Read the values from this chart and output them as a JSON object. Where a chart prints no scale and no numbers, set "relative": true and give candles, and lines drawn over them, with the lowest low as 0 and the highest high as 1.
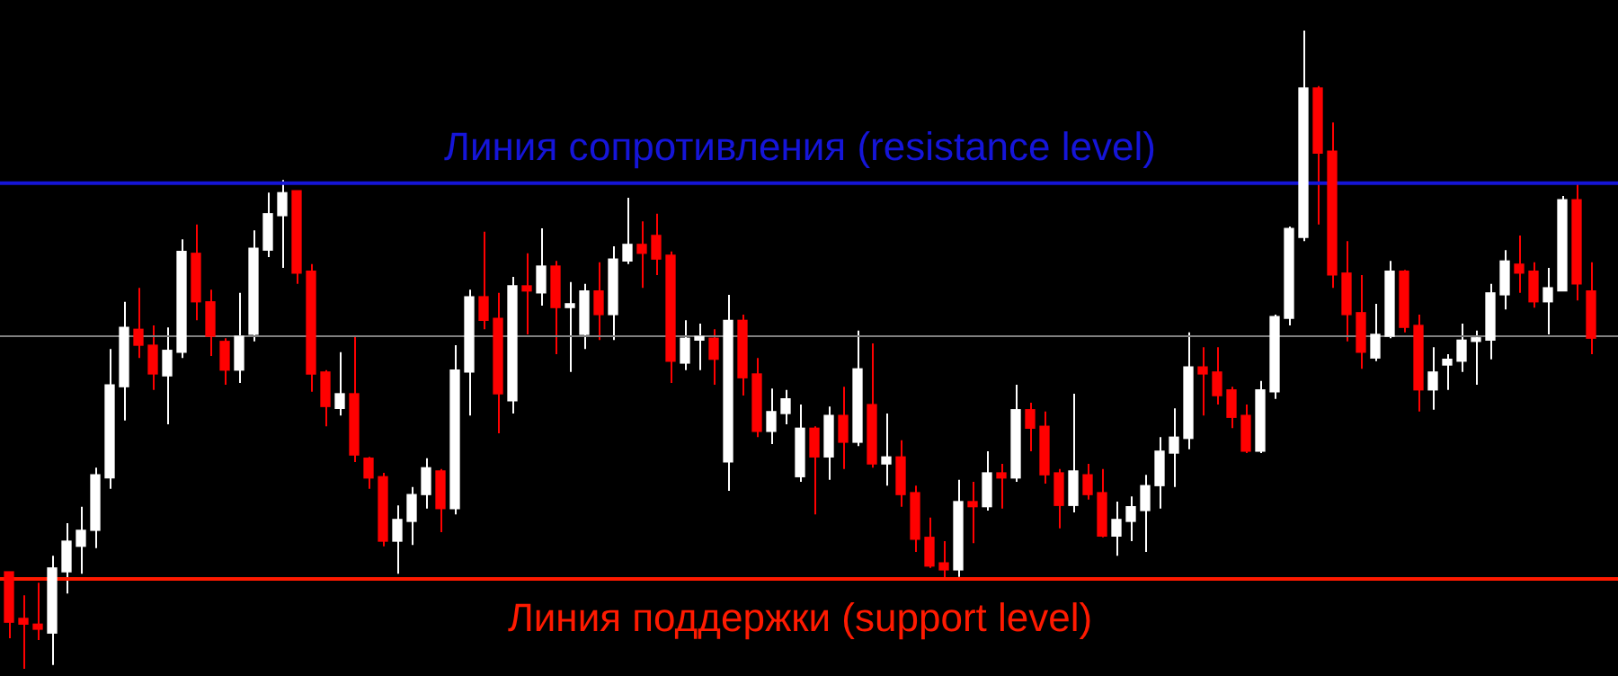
{
  "chart_data": {
    "type": "candlestick",
    "relative": true,
    "tick_labels": false,
    "legend": false,
    "categories": [
      null,
      null,
      null,
      null,
      null,
      null,
      null,
      null,
      null,
      null,
      null,
      null,
      null,
      null,
      null,
      null,
      null,
      null,
      null,
      null,
      null,
      null,
      null,
      null,
      null,
      null,
      null,
      null,
      null,
      null,
      null,
      null,
      null,
      null,
      null,
      null,
      null,
      null,
      null,
      null,
      null,
      null,
      null,
      null,
      null,
      null,
      null,
      null,
      null,
      null,
      null,
      null,
      null,
      null,
      null,
      null,
      null,
      null,
      null,
      null,
      null,
      null,
      null,
      null,
      null,
      null,
      null,
      null,
      null,
      null,
      null,
      null,
      null,
      null,
      null,
      null,
      null,
      null,
      null,
      null,
      null,
      null,
      null,
      null,
      null,
      null,
      null,
      null,
      null,
      null,
      null,
      null,
      null,
      null,
      null,
      null,
      null,
      null,
      null,
      null,
      null,
      null,
      null,
      null,
      null,
      null,
      null,
      null,
      null,
      null,
      null
    ],
    "ohlc": [
      [
        0.152,
        0.152,
        0.048,
        0.073
      ],
      [
        0.079,
        0.115,
        0,
        0.07
      ],
      [
        0.07,
        0.135,
        0.045,
        0.062
      ],
      [
        0.056,
        0.177,
        0.006,
        0.158
      ],
      [
        0.152,
        0.228,
        0.118,
        0.2
      ],
      [
        0.192,
        0.254,
        0.149,
        0.217
      ],
      [
        0.217,
        0.315,
        0.189,
        0.304
      ],
      [
        0.299,
        0.501,
        0.282,
        0.445
      ],
      [
        0.442,
        0.575,
        0.389,
        0.535
      ],
      [
        0.532,
        0.597,
        0.487,
        0.507
      ],
      [
        0.507,
        0.538,
        0.437,
        0.462
      ],
      [
        0.459,
        0.535,
        0.383,
        0.499
      ],
      [
        0.496,
        0.673,
        0.487,
        0.654
      ],
      [
        0.651,
        0.696,
        0.546,
        0.575
      ],
      [
        0.575,
        0.594,
        0.49,
        0.521
      ],
      [
        0.513,
        0.518,
        0.445,
        0.468
      ],
      [
        0.468,
        0.589,
        0.448,
        0.521
      ],
      [
        0.524,
        0.687,
        0.513,
        0.659
      ],
      [
        0.656,
        0.746,
        0.645,
        0.713
      ],
      [
        0.71,
        0.766,
        0.628,
        0.746
      ],
      [
        0.749,
        0.749,
        0.603,
        0.62
      ],
      [
        0.623,
        0.634,
        0.434,
        0.462
      ],
      [
        0.465,
        0.468,
        0.38,
        0.411
      ],
      [
        0.408,
        0.496,
        0.397,
        0.431
      ],
      [
        0.431,
        0.521,
        0.324,
        0.335
      ],
      [
        0.33,
        0.332,
        0.282,
        0.299
      ],
      [
        0.301,
        0.307,
        0.192,
        0.2
      ],
      [
        0.2,
        0.256,
        0.149,
        0.234
      ],
      [
        0.231,
        0.285,
        0.194,
        0.273
      ],
      [
        0.273,
        0.33,
        0.251,
        0.315
      ],
      [
        0.31,
        0.313,
        0.214,
        0.251
      ],
      [
        0.251,
        0.507,
        0.242,
        0.468
      ],
      [
        0.465,
        0.594,
        0.397,
        0.583
      ],
      [
        0.583,
        0.685,
        0.532,
        0.546
      ],
      [
        0.549,
        0.589,
        0.369,
        0.431
      ],
      [
        0.42,
        0.614,
        0.4,
        0.6
      ],
      [
        0.6,
        0.651,
        0.524,
        0.592
      ],
      [
        0.589,
        0.69,
        0.569,
        0.631
      ],
      [
        0.631,
        0.639,
        0.493,
        0.566
      ],
      [
        0.566,
        0.606,
        0.465,
        0.572
      ],
      [
        0.524,
        0.603,
        0.501,
        0.592
      ],
      [
        0.592,
        0.637,
        0.515,
        0.555
      ],
      [
        0.555,
        0.662,
        0.515,
        0.642
      ],
      [
        0.639,
        0.738,
        0.634,
        0.665
      ],
      [
        0.665,
        0.701,
        0.597,
        0.651
      ],
      [
        0.679,
        0.713,
        0.617,
        0.642
      ],
      [
        0.648,
        0.654,
        0.448,
        0.482
      ],
      [
        0.479,
        0.546,
        0.468,
        0.518
      ],
      [
        0.515,
        0.541,
        0.468,
        0.518
      ],
      [
        0.518,
        0.532,
        0.445,
        0.485
      ],
      [
        0.324,
        0.586,
        0.279,
        0.546
      ],
      [
        0.546,
        0.555,
        0.428,
        0.456
      ],
      [
        0.462,
        0.487,
        0.363,
        0.372
      ],
      [
        0.372,
        0.439,
        0.352,
        0.403
      ],
      [
        0.4,
        0.437,
        0.383,
        0.423
      ],
      [
        0.301,
        0.414,
        0.293,
        0.377
      ],
      [
        0.377,
        0.38,
        0.242,
        0.332
      ],
      [
        0.332,
        0.411,
        0.296,
        0.397
      ],
      [
        0.397,
        0.442,
        0.313,
        0.355
      ],
      [
        0.355,
        0.53,
        0.349,
        0.47
      ],
      [
        0.414,
        0.51,
        0.315,
        0.321
      ],
      [
        0.321,
        0.4,
        0.287,
        0.332
      ],
      [
        0.332,
        0.358,
        0.254,
        0.273
      ],
      [
        0.276,
        0.287,
        0.183,
        0.203
      ],
      [
        0.206,
        0.237,
        0.158,
        0.161
      ],
      [
        0.166,
        0.2,
        0.141,
        0.155
      ],
      [
        0.155,
        0.296,
        0.144,
        0.262
      ],
      [
        0.262,
        0.293,
        0.197,
        0.254
      ],
      [
        0.254,
        0.341,
        0.248,
        0.307
      ],
      [
        0.307,
        0.321,
        0.251,
        0.299
      ],
      [
        0.299,
        0.445,
        0.293,
        0.406
      ],
      [
        0.406,
        0.417,
        0.341,
        0.377
      ],
      [
        0.38,
        0.403,
        0.29,
        0.304
      ],
      [
        0.307,
        0.313,
        0.22,
        0.256
      ],
      [
        0.256,
        0.431,
        0.245,
        0.31
      ],
      [
        0.304,
        0.321,
        0.265,
        0.273
      ],
      [
        0.276,
        0.313,
        0.206,
        0.208
      ],
      [
        0.208,
        0.262,
        0.177,
        0.234
      ],
      [
        0.231,
        0.27,
        0.2,
        0.254
      ],
      [
        0.248,
        0.304,
        0.183,
        0.287
      ],
      [
        0.287,
        0.363,
        0.251,
        0.341
      ],
      [
        0.338,
        0.408,
        0.285,
        0.363
      ],
      [
        0.361,
        0.527,
        0.344,
        0.473
      ],
      [
        0.473,
        0.504,
        0.397,
        0.462
      ],
      [
        0.465,
        0.504,
        0.414,
        0.428
      ],
      [
        0.437,
        0.442,
        0.377,
        0.394
      ],
      [
        0.397,
        0.414,
        0.338,
        0.341
      ],
      [
        0.341,
        0.451,
        0.338,
        0.437
      ],
      [
        0.434,
        0.555,
        0.423,
        0.552
      ],
      [
        0.549,
        0.693,
        0.538,
        0.69
      ],
      [
        0.676,
        1,
        0.67,
        0.91
      ],
      [
        0.91,
        0.913,
        0.696,
        0.808
      ],
      [
        0.811,
        0.856,
        0.597,
        0.617
      ],
      [
        0.62,
        0.67,
        0.513,
        0.555
      ],
      [
        0.558,
        0.617,
        0.47,
        0.496
      ],
      [
        0.487,
        0.572,
        0.482,
        0.524
      ],
      [
        0.521,
        0.639,
        0.518,
        0.623
      ],
      [
        0.623,
        0.625,
        0.527,
        0.535
      ],
      [
        0.538,
        0.555,
        0.403,
        0.437
      ],
      [
        0.437,
        0.504,
        0.406,
        0.465
      ],
      [
        0.476,
        0.493,
        0.437,
        0.485
      ],
      [
        0.482,
        0.541,
        0.465,
        0.515
      ],
      [
        0.513,
        0.53,
        0.445,
        0.518
      ],
      [
        0.515,
        0.603,
        0.485,
        0.589
      ],
      [
        0.586,
        0.656,
        0.563,
        0.639
      ],
      [
        0.634,
        0.679,
        0.589,
        0.62
      ],
      [
        0.623,
        0.637,
        0.566,
        0.575
      ],
      [
        0.575,
        0.628,
        0.524,
        0.597
      ],
      [
        0.592,
        0.741,
        0.592,
        0.735
      ],
      [
        0.735,
        0.761,
        0.577,
        0.603
      ],
      [
        0.592,
        0.637,
        0.493,
        0.518
      ]
    ],
    "colors": [
      "#ff0000",
      "#ff0000",
      "#ff0000",
      "#ffffff",
      "#ffffff",
      "#ffffff",
      "#ffffff",
      "#ffffff",
      "#ffffff",
      "#ff0000",
      "#ff0000",
      "#ffffff",
      "#ffffff",
      "#ff0000",
      "#ff0000",
      "#ff0000",
      "#ffffff",
      "#ffffff",
      "#ffffff",
      "#ffffff",
      "#ff0000",
      "#ff0000",
      "#ff0000",
      "#ffffff",
      "#ff0000",
      "#ff0000",
      "#ff0000",
      "#ffffff",
      "#ffffff",
      "#ffffff",
      "#ff0000",
      "#ffffff",
      "#ffffff",
      "#ff0000",
      "#ff0000",
      "#ffffff",
      "#ff0000",
      "#ffffff",
      "#ff0000",
      "#ffffff",
      "#ffffff",
      "#ff0000",
      "#ffffff",
      "#ffffff",
      "#ff0000",
      "#ff0000",
      "#ff0000",
      "#ffffff",
      "#ffffff",
      "#ff0000",
      "#ffffff",
      "#ff0000",
      "#ff0000",
      "#ffffff",
      "#ffffff",
      "#ffffff",
      "#ff0000",
      "#ffffff",
      "#ff0000",
      "#ffffff",
      "#ff0000",
      "#ffffff",
      "#ff0000",
      "#ff0000",
      "#ff0000",
      "#ff0000",
      "#ffffff",
      "#ff0000",
      "#ffffff",
      "#ff0000",
      "#ffffff",
      "#ff0000",
      "#ff0000",
      "#ff0000",
      "#ffffff",
      "#ff0000",
      "#ff0000",
      "#ffffff",
      "#ffffff",
      "#ffffff",
      "#ffffff",
      "#ffffff",
      "#ffffff",
      "#ff0000",
      "#ff0000",
      "#ff0000",
      "#ff0000",
      "#ffffff",
      "#ffffff",
      "#ffffff",
      "#ffffff",
      "#ff0000",
      "#ff0000",
      "#ff0000",
      "#ff0000",
      "#ffffff",
      "#ffffff",
      "#ff0000",
      "#ff0000",
      "#ffffff",
      "#ffffff",
      "#ffffff",
      "#ffffff",
      "#ffffff",
      "#ffffff",
      "#ff0000",
      "#ff0000",
      "#ffffff",
      "#ffffff",
      "#ff0000",
      "#ff0000"
    ],
    "ref_lines": [
      {
        "axis": "y",
        "value": 0.761,
        "label": "Линия сопротивления (resistance level)",
        "color": "#1515d8"
      },
      {
        "axis": "y",
        "value": 0.141,
        "label": "Линия поддержки (support level)",
        "color": "#ff1a00"
      },
      {
        "axis": "y",
        "value": 0.521,
        "color": "#808080"
      }
    ]
  }
}
